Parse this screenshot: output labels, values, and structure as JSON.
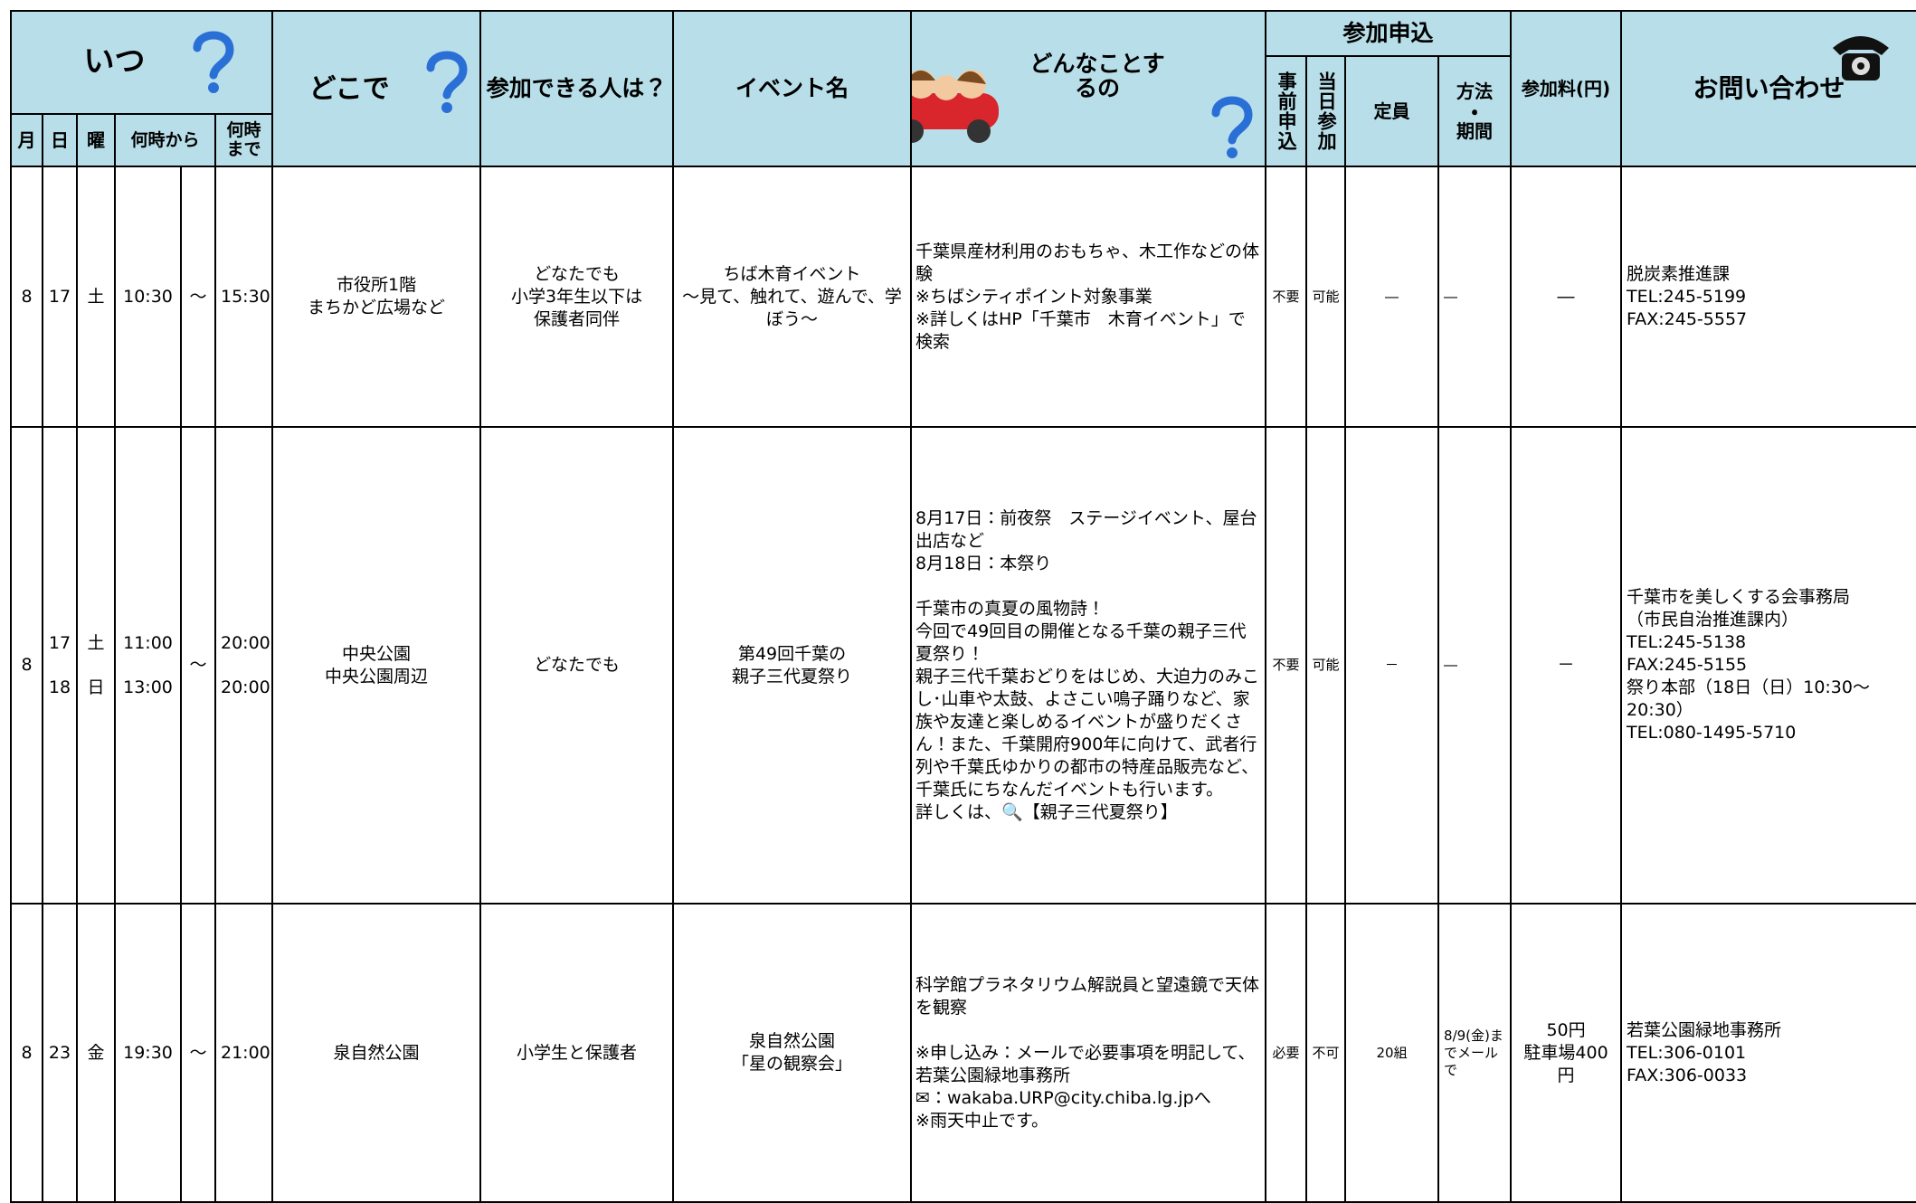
{
  "header": {
    "when": "いつ",
    "month": "月",
    "day": "日",
    "weekday": "曜",
    "from": "何時から",
    "to": "何時まで",
    "where": "どこで",
    "who": "参加できる人は？",
    "event": "イベント名",
    "what": "どんなことするの",
    "apply": "参加申込",
    "advance": "事前申込",
    "sameday": "当日参加",
    "capacity": "定員",
    "method": "方法\n・\n期間",
    "fee": "参加料(円)",
    "contact": "お問い合わせ"
  },
  "table": {
    "rows": [
      {
        "month": "8",
        "day": [
          "17"
        ],
        "weekday": [
          "土"
        ],
        "from": [
          "10:30"
        ],
        "tilde": "～",
        "to": [
          "15:30"
        ],
        "where": "市役所1階\nまちかど広場など",
        "who": "どなたでも\n小学3年生以下は\n保護者同伴",
        "event": "ちば木育イベント\n～見て、触れて、遊んで、学ぼう～",
        "what": "千葉県産材利用のおもちゃ、木工作などの体験\n※ちばシティポイント対象事業\n※詳しくはHP「千葉市　木育イベント」で検索",
        "advance": "不要",
        "sameday": "可能",
        "capacity": "―",
        "method": "―",
        "fee": "―",
        "contact": "脱炭素推進課\nTEL:245-5199\nFAX:245-5557"
      },
      {
        "month": "8",
        "day": [
          "17",
          "18"
        ],
        "weekday": [
          "土",
          "日"
        ],
        "from": [
          "11:00",
          "13:00"
        ],
        "tilde": "～",
        "to": [
          "20:00",
          "20:00"
        ],
        "where": "中央公園\n中央公園周辺",
        "who": "どなたでも",
        "event": "第49回千葉の\n親子三代夏祭り",
        "what": "8月17日：前夜祭　ステージイベント、屋台出店など\n8月18日：本祭り\n\n千葉市の真夏の風物詩！\n今回で49回目の開催となる千葉の親子三代夏祭り！\n親子三代千葉おどりをはじめ、大迫力のみこし･山車や太鼓、よさこい鳴子踊りなど、家族や友達と楽しめるイベントが盛りだくさん！また、千葉開府900年に向けて、武者行列や千葉氏ゆかりの都市の特産品販売など、千葉氏にちなんだイベントも行います。\n詳しくは、🔍【親子三代夏祭り】",
        "advance": "不要",
        "sameday": "可能",
        "capacity": "－",
        "method": "―",
        "fee": "－",
        "contact": "千葉市を美しくする会事務局\n（市民自治推進課内）\nTEL:245-5138\nFAX:245-5155\n祭り本部（18日（日）10:30～20:30）\nTEL:080-1495-5710"
      },
      {
        "month": "8",
        "day": [
          "23"
        ],
        "weekday": [
          "金"
        ],
        "from": [
          "19:30"
        ],
        "tilde": "～",
        "to": [
          "21:00"
        ],
        "where": "泉自然公園",
        "who": "小学生と保護者",
        "event": "泉自然公園\n「星の観察会」",
        "what": "科学館プラネタリウム解説員と望遠鏡で天体を観察\n\n※申し込み：メールで必要事項を明記して、若葉公園緑地事務所\n✉：wakaba.URP@city.chiba.lg.jpへ\n※雨天中止です。",
        "advance": "必要",
        "sameday": "不可",
        "capacity": "20組",
        "method": "8/9(金)までメールで",
        "fee": "50円\n駐車場400円",
        "contact": "若葉公園緑地事務所\nTEL:306-0101\nFAX:306-0033"
      }
    ]
  }
}
